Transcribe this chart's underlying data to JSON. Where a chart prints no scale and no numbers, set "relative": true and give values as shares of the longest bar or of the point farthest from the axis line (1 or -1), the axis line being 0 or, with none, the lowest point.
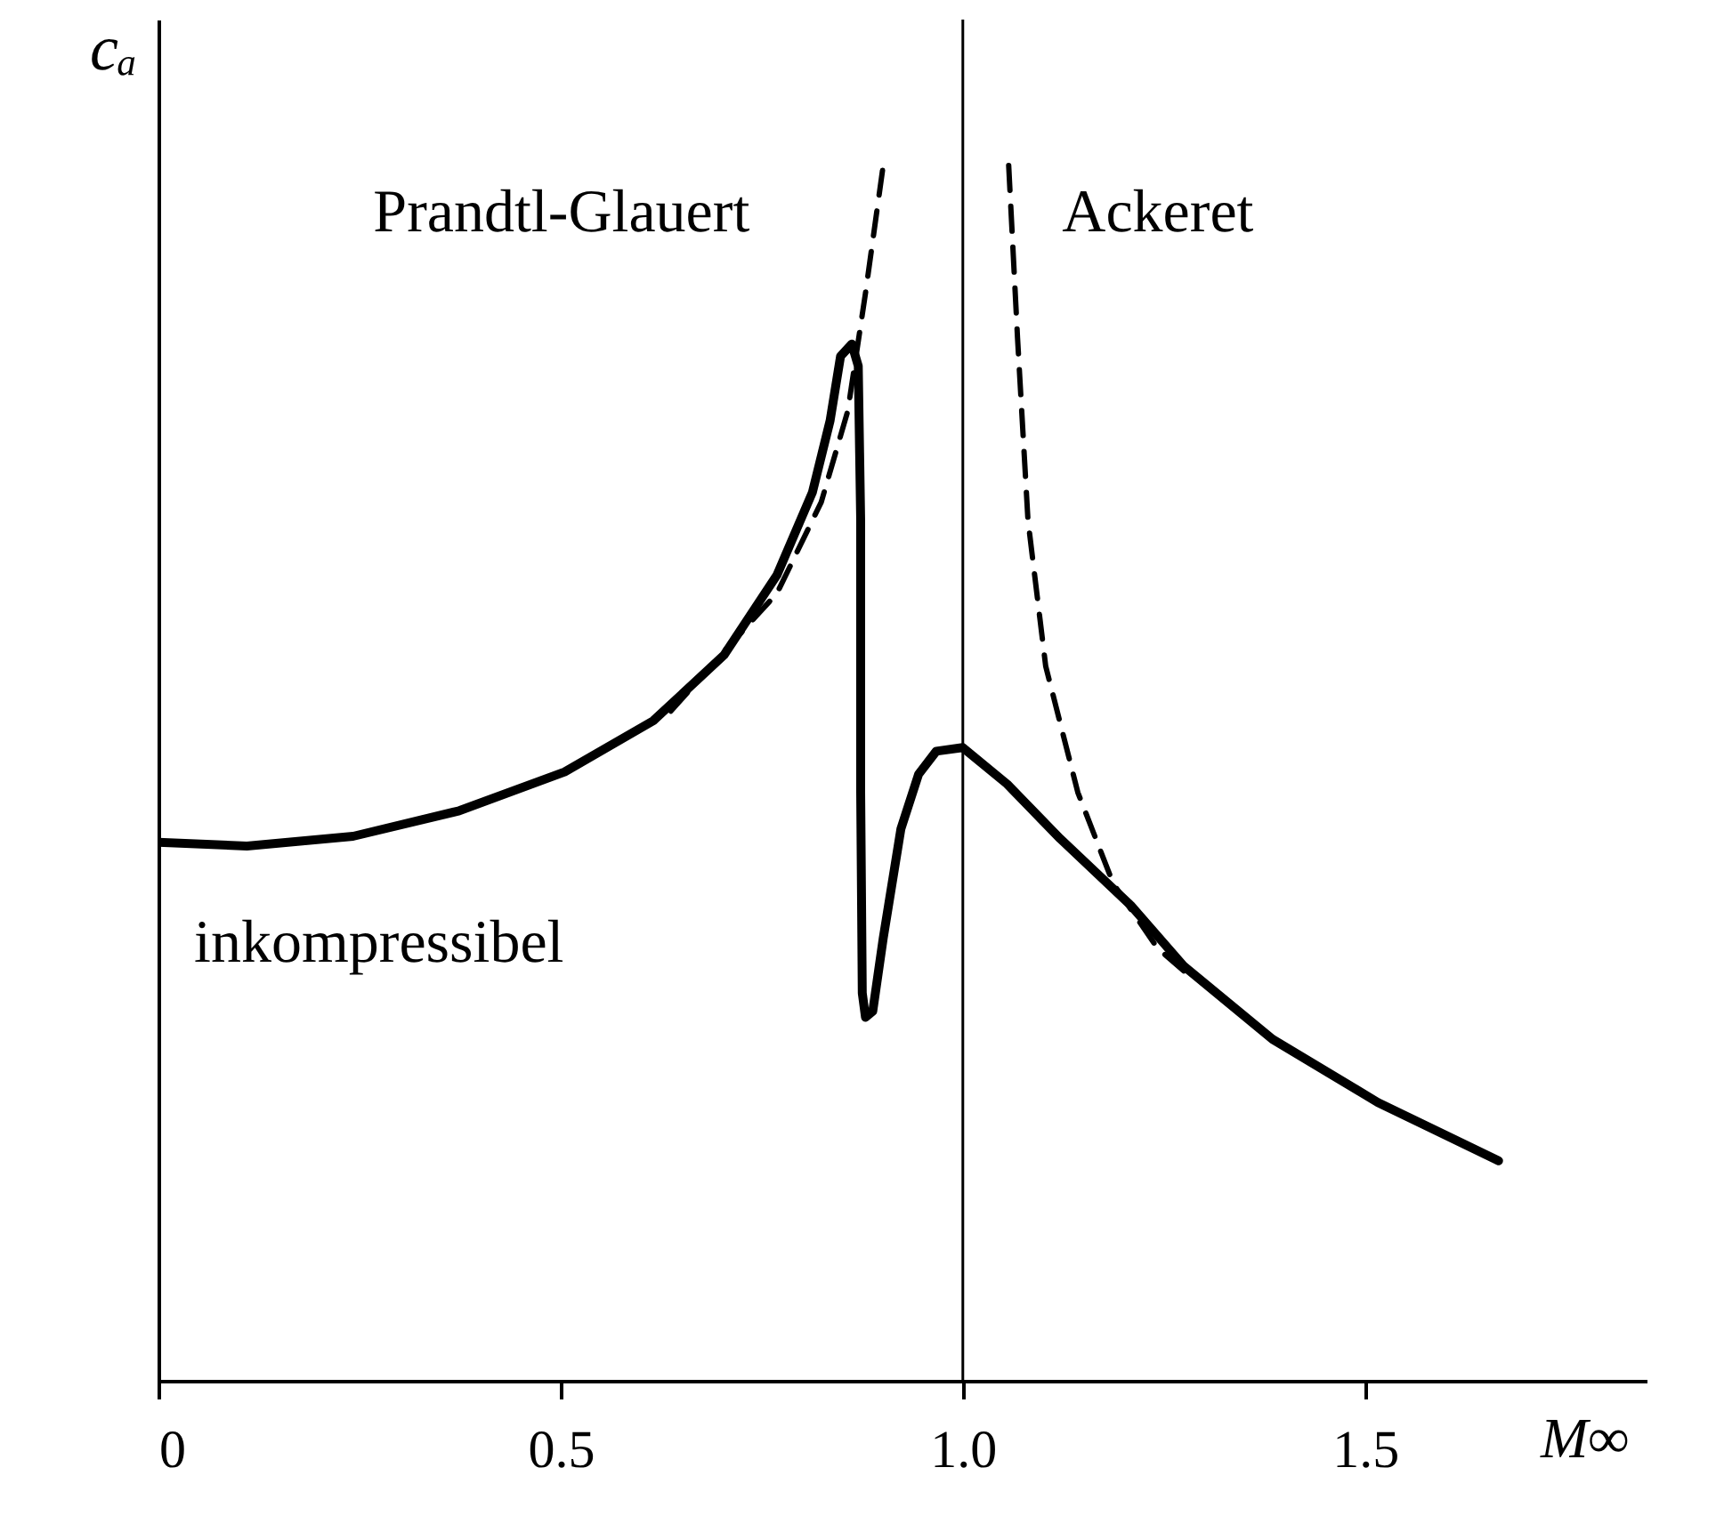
{
  "chart_data": {
    "type": "line",
    "xlabel": "M∞",
    "ylabel": "cₐ",
    "relative": true,
    "xlim": [
      0,
      1.85
    ],
    "xticks": [
      0,
      0.5,
      {
        "value": 1.0,
        "label": "1.0"
      },
      1.5
    ],
    "grid": false,
    "legend": false,
    "marker": "none",
    "series": [
      {
        "name": "inkompressibel",
        "color": "#000000",
        "line_style": "solid",
        "x": [
          0,
          0.11,
          0.242,
          0.374,
          0.505,
          0.615,
          0.703,
          0.769,
          0.813,
          0.835,
          0.848,
          0.862,
          0.87,
          0.873,
          0.873,
          0.875,
          0.879,
          0.888,
          0.901,
          0.923,
          0.945,
          0.967,
          1.0,
          1.055,
          1.121,
          1.209,
          1.275,
          1.385,
          1.516,
          1.666
        ],
        "values": [
          0.443,
          0.44,
          0.448,
          0.469,
          0.501,
          0.543,
          0.597,
          0.663,
          0.731,
          0.79,
          0.843,
          0.853,
          0.835,
          0.708,
          0.484,
          0.319,
          0.299,
          0.304,
          0.364,
          0.454,
          0.499,
          0.518,
          0.521,
          0.491,
          0.446,
          0.391,
          0.341,
          0.281,
          0.229,
          0.181
        ]
      },
      {
        "name": "Prandtl-Glauert",
        "color": "#000000",
        "line_style": "dashed",
        "x": [
          0.637,
          0.703,
          0.769,
          0.824,
          0.857,
          0.879,
          0.901
        ],
        "values": [
          0.551,
          0.6,
          0.648,
          0.723,
          0.798,
          0.895,
          1.0
        ]
      },
      {
        "name": "Ackeret",
        "color": "#000000",
        "line_style": "dashed",
        "x": [
          1.057,
          1.068,
          1.081,
          1.103,
          1.143,
          1.187,
          1.242,
          1.275
        ],
        "values": [
          1.0,
          0.858,
          0.708,
          0.588,
          0.484,
          0.409,
          0.356,
          0.337
        ]
      }
    ],
    "ref_lines": [
      {
        "axis": "x",
        "value": 1.0,
        "color": "#000000",
        "line_style": "solid"
      }
    ]
  }
}
